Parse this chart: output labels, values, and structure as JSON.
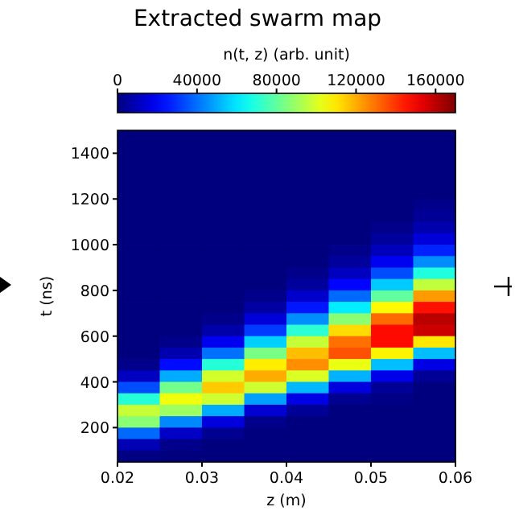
{
  "chart_data": {
    "type": "heatmap",
    "title": "Extracted swarm map",
    "xlabel": "z (m)",
    "ylabel": "t (ns)",
    "clabel": "n(t, z) (arb. unit)",
    "x": [
      0.0225,
      0.0275,
      0.0325,
      0.0375,
      0.0425,
      0.0475,
      0.0525,
      0.0575
    ],
    "y": [
      1475,
      1425,
      1375,
      1325,
      1275,
      1225,
      1175,
      1125,
      1075,
      1025,
      975,
      925,
      875,
      825,
      775,
      725,
      675,
      625,
      575,
      525,
      475,
      425,
      375,
      325,
      275,
      225,
      175,
      125,
      75
    ],
    "xlim": [
      0.02,
      0.06
    ],
    "xticks": [
      0.02,
      0.03,
      0.04,
      0.05,
      0.06
    ],
    "ylim": [
      50,
      1500
    ],
    "yticks": [
      200,
      400,
      600,
      800,
      1000,
      1200,
      1400
    ],
    "clim": [
      0,
      170000
    ],
    "cticks": [
      0,
      40000,
      80000,
      120000,
      160000
    ],
    "cells": [
      [
        0,
        0,
        0,
        0,
        0,
        0,
        0,
        0
      ],
      [
        0,
        0,
        0,
        0,
        0,
        0,
        0,
        0
      ],
      [
        0,
        0,
        0,
        0,
        0,
        0,
        0,
        0
      ],
      [
        0,
        0,
        0,
        0,
        0,
        0,
        0,
        0
      ],
      [
        0,
        0,
        0,
        0,
        0,
        0,
        0,
        0
      ],
      [
        0,
        0,
        0,
        0,
        0,
        0,
        0,
        0
      ],
      [
        0,
        0,
        0,
        0,
        0,
        0,
        0,
        2000
      ],
      [
        0,
        0,
        0,
        0,
        0,
        0,
        0,
        4000
      ],
      [
        0,
        0,
        0,
        0,
        0,
        0,
        2000,
        8000
      ],
      [
        0,
        0,
        0,
        0,
        0,
        0,
        5000,
        15000
      ],
      [
        0,
        0,
        0,
        0,
        0,
        2000,
        10000,
        27000
      ],
      [
        0,
        0,
        0,
        0,
        0,
        5000,
        19000,
        45000
      ],
      [
        0,
        0,
        0,
        0,
        2000,
        11000,
        34000,
        69000
      ],
      [
        0,
        0,
        0,
        0,
        5000,
        22000,
        55000,
        96000
      ],
      [
        0,
        0,
        0,
        2000,
        13000,
        39000,
        80000,
        123000
      ],
      [
        0,
        0,
        0,
        6000,
        25000,
        61000,
        107000,
        146000
      ],
      [
        0,
        0,
        2000,
        15000,
        45000,
        87000,
        131000,
        160000
      ],
      [
        0,
        0,
        7000,
        31000,
        71000,
        112000,
        147000,
        157000
      ],
      [
        0,
        2000,
        19000,
        56000,
        97000,
        130000,
        147000,
        110000
      ],
      [
        0,
        8000,
        40000,
        84000,
        117000,
        135000,
        108000,
        53000
      ],
      [
        2000,
        23000,
        70000,
        109000,
        125000,
        103000,
        53000,
        17000
      ],
      [
        11000,
        50000,
        99000,
        120000,
        100000,
        51000,
        18000,
        4000
      ],
      [
        34000,
        83000,
        115000,
        98000,
        52000,
        16000,
        4000,
        0
      ],
      [
        70000,
        104000,
        98000,
        48000,
        17000,
        3000,
        1000,
        0
      ],
      [
        97000,
        90000,
        50000,
        14000,
        4000,
        0,
        0,
        0
      ],
      [
        87000,
        44000,
        16000,
        2000,
        0,
        0,
        0,
        0
      ],
      [
        39000,
        12000,
        3000,
        0,
        0,
        0,
        0,
        0
      ],
      [
        9000,
        2000,
        0,
        0,
        0,
        0,
        0,
        0
      ],
      [
        1000,
        0,
        0,
        0,
        0,
        0,
        0,
        0
      ]
    ]
  }
}
